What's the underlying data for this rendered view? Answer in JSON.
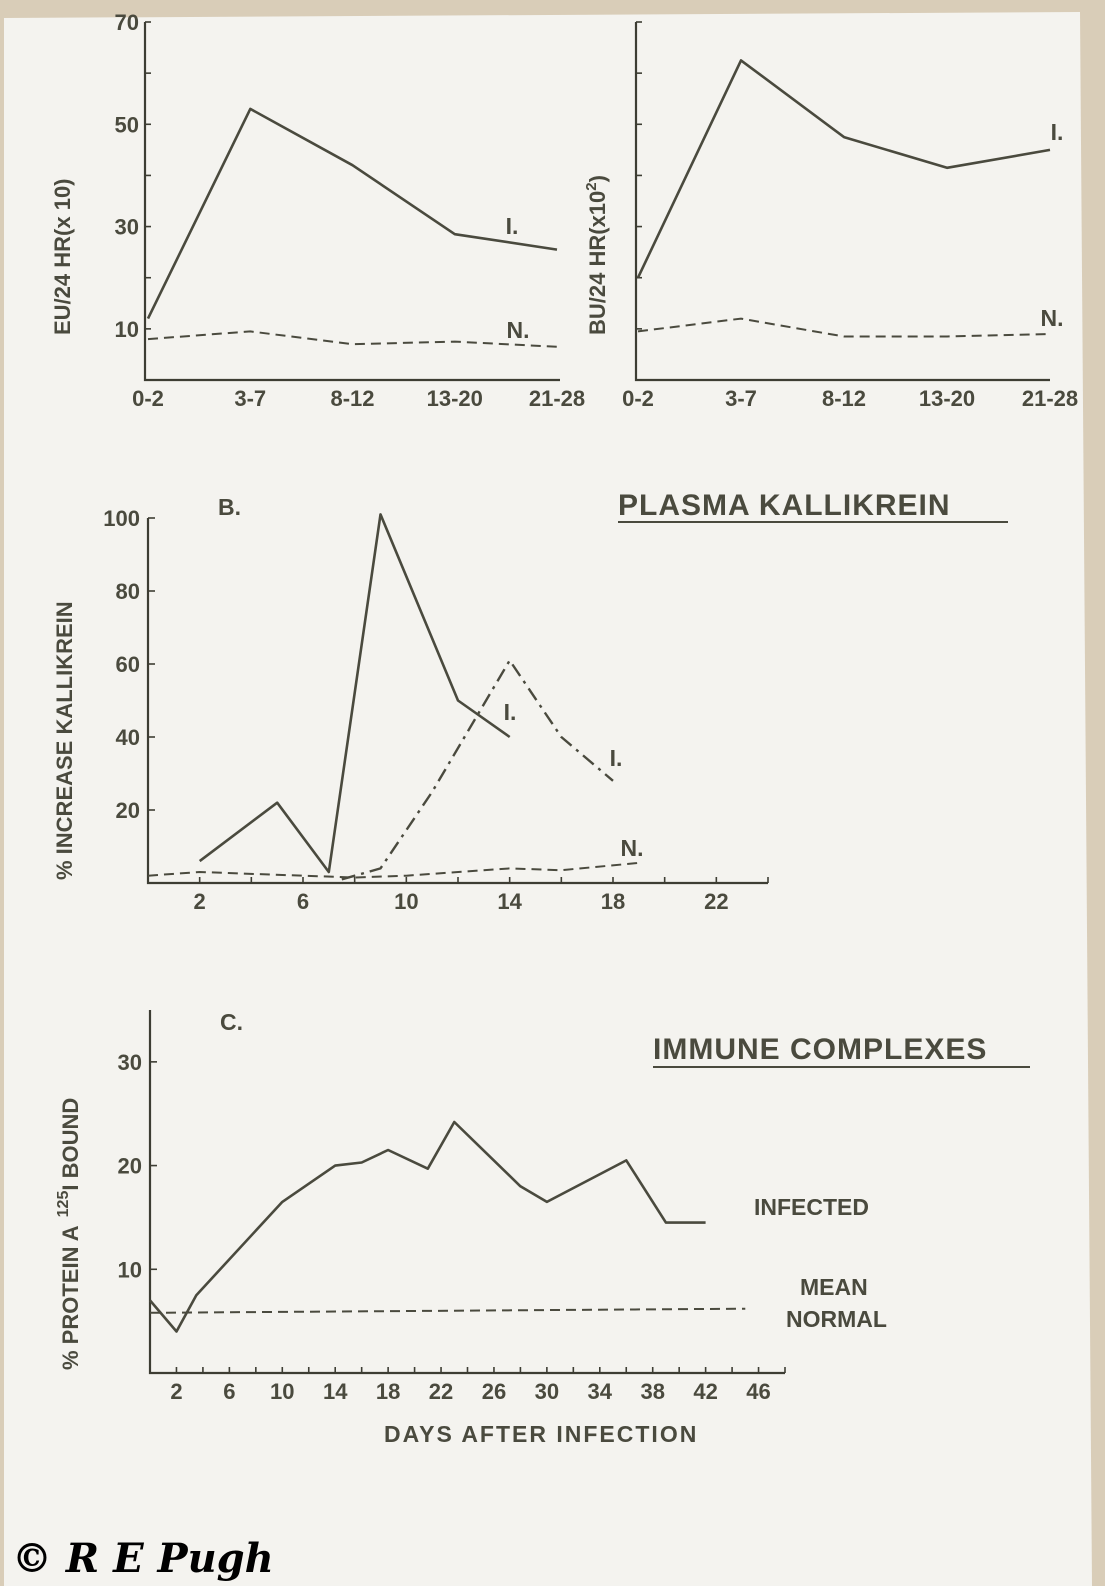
{
  "chart_data": [
    {
      "id": "urine",
      "type": "line",
      "ylabel": "EU/24 HR(x 10)",
      "categories": [
        "0-2",
        "3-7",
        "8-12",
        "13-20",
        "21-28"
      ],
      "yticks": [
        "10",
        "30",
        "50",
        "70"
      ],
      "ylim": [
        0,
        70
      ],
      "series": [
        {
          "name": "I.",
          "style": "solid",
          "values": [
            12,
            53,
            42,
            28.5,
            25.5
          ]
        },
        {
          "name": "N.",
          "style": "dashed",
          "values": [
            8,
            9.5,
            7,
            7.5,
            6.5
          ]
        }
      ]
    },
    {
      "id": "blood",
      "type": "line",
      "ylabel": "BU/24 HR(x10^2)",
      "ylabel_base": "BU/24 HR(x10",
      "ylabel_sup": "2",
      "ylabel_tail": ")",
      "categories": [
        "0-2",
        "3-7",
        "8-12",
        "13-20",
        "21-28"
      ],
      "ylim": [
        0,
        70
      ],
      "series": [
        {
          "name": "I.",
          "style": "solid",
          "values": [
            20,
            62.5,
            47.5,
            41.5,
            45
          ]
        },
        {
          "name": "N.",
          "style": "dashed",
          "values": [
            9.5,
            12,
            8.5,
            8.5,
            9
          ]
        }
      ]
    },
    {
      "id": "kallikrein",
      "type": "line",
      "panel_label": "B.",
      "title": "PLASMA KALLIKREIN",
      "ylabel": "% INCREASE KALLIKREIN",
      "xticks": [
        2,
        6,
        10,
        14,
        18,
        22
      ],
      "yticks": [
        20,
        40,
        60,
        80,
        100
      ],
      "xlim": [
        0,
        24
      ],
      "ylim": [
        0,
        100
      ],
      "series": [
        {
          "name": "I.",
          "style": "solid",
          "x": [
            2,
            5,
            7,
            9,
            12,
            14
          ],
          "y": [
            6,
            22,
            3,
            101,
            50,
            40
          ]
        },
        {
          "name": "I.",
          "style": "dash-dot",
          "x": [
            7.5,
            9,
            11,
            14,
            16,
            18
          ],
          "y": [
            1,
            4,
            25,
            61,
            40,
            28
          ]
        },
        {
          "name": "N.",
          "style": "dashed",
          "x": [
            0,
            2,
            6,
            8,
            10,
            14,
            16,
            19
          ],
          "y": [
            2,
            3,
            2,
            1.5,
            2,
            4,
            3.5,
            5.5
          ]
        }
      ]
    },
    {
      "id": "immune",
      "type": "line",
      "panel_label": "C.",
      "title": "IMMUNE COMPLEXES",
      "ylabel": "% PROTEIN A 125I BOUND",
      "ylabel_a": "% PROTEIN A",
      "ylabel_sup": "125",
      "ylabel_b": "I   BOUND",
      "xlabel": "DAYS AFTER INFECTION",
      "xticks": [
        2,
        6,
        10,
        14,
        18,
        22,
        26,
        30,
        34,
        38,
        42,
        46
      ],
      "yticks": [
        10,
        20,
        30
      ],
      "xlim": [
        0,
        48
      ],
      "ylim": [
        0,
        35
      ],
      "series": [
        {
          "name": "INFECTED",
          "style": "solid",
          "x": [
            0,
            2,
            3.5,
            10,
            14,
            16,
            18,
            21,
            23,
            28,
            30,
            36,
            39,
            42
          ],
          "y": [
            7,
            4,
            7.5,
            16.5,
            20,
            20.3,
            21.5,
            19.7,
            24.2,
            18,
            16.5,
            20.5,
            14.5,
            14.5
          ]
        },
        {
          "name": "MEAN NORMAL",
          "name_line1": "MEAN",
          "name_line2": "NORMAL",
          "style": "dashed",
          "x": [
            0,
            45
          ],
          "y": [
            5.8,
            6.2
          ]
        }
      ]
    }
  ],
  "copyright": "© R E Pugh"
}
